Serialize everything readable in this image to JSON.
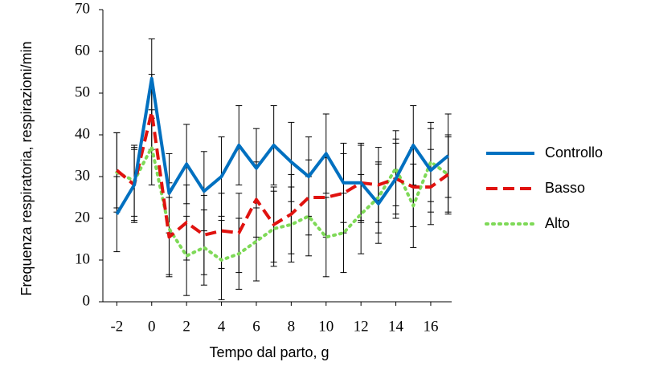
{
  "chart_data": {
    "type": "line",
    "x_label": "Tempo dal parto, g",
    "y_label": "Frequenza respiratoria, respirazioni/min",
    "x": [
      -2,
      -1,
      0,
      1,
      2,
      3,
      4,
      5,
      6,
      7,
      8,
      9,
      10,
      11,
      12,
      13,
      14,
      15,
      16,
      17
    ],
    "xlim": [
      -2.8,
      17.2
    ],
    "xticks": [
      -2,
      0,
      2,
      4,
      6,
      8,
      10,
      12,
      14,
      16
    ],
    "ylim": [
      0,
      70
    ],
    "yticks": [
      0,
      10,
      20,
      30,
      40,
      50,
      60,
      70
    ],
    "legend_position": "right",
    "series": [
      {
        "name": "Controllo",
        "color": "#0070c0",
        "dash": "solid",
        "values": [
          21,
          28,
          53.5,
          26,
          33,
          26.5,
          30,
          37.5,
          32,
          37.5,
          33.5,
          30,
          35.5,
          28.5,
          28.5,
          23.5,
          29.5,
          37.5,
          31.5,
          35
        ],
        "errors": [
          9,
          9,
          9.5,
          9.5,
          9.5,
          9.5,
          9.5,
          9.5,
          9.5,
          9.5,
          9.5,
          9.5,
          9.5,
          9.5,
          9.5,
          9.5,
          9.5,
          9.5,
          10,
          10
        ]
      },
      {
        "name": "Basso",
        "color": "#e0120f",
        "dash": "dashed",
        "values": [
          31.5,
          28,
          45.5,
          15.5,
          19,
          16,
          17,
          16.5,
          24.5,
          18.5,
          21,
          25,
          25,
          26,
          28.5,
          28,
          29.5,
          27.5,
          27.5,
          30.5
        ],
        "errors": [
          9,
          8.5,
          9,
          9.5,
          9,
          9.5,
          9,
          9.5,
          9,
          9,
          9.5,
          9,
          9.5,
          9.5,
          9,
          9,
          8.5,
          9.5,
          9,
          9.5
        ]
      },
      {
        "name": "Alto",
        "color": "#7ed957",
        "dash": "dotted",
        "values": [
          31,
          29,
          37,
          17.5,
          11,
          13,
          10,
          11.5,
          14.5,
          17.5,
          18.5,
          20.5,
          15.5,
          16.5,
          21,
          25,
          32,
          23,
          33.5,
          30.5
        ],
        "errors": [
          9.5,
          8.5,
          9,
          11,
          9.5,
          9,
          9.5,
          8.5,
          9.5,
          9,
          9,
          9.5,
          9.5,
          9.5,
          9.5,
          8.5,
          9,
          10,
          9.5,
          9
        ]
      }
    ]
  }
}
